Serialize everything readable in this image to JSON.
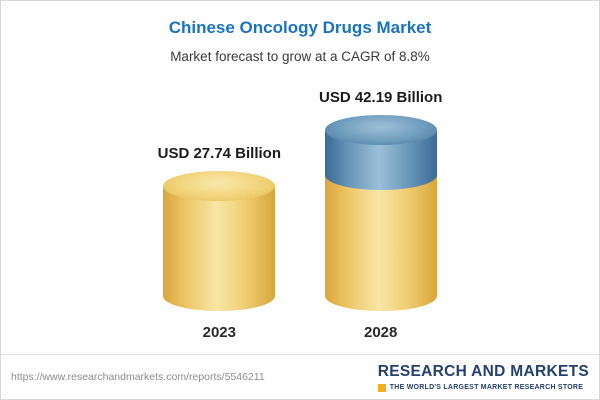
{
  "header": {
    "title": "Chinese Oncology Drugs Market",
    "subtitle": "Market forecast to grow at a CAGR of 8.8%"
  },
  "chart_data": {
    "type": "bar",
    "title": "Chinese Oncology Drugs Market",
    "subtitle": "Market forecast to grow at a CAGR of 8.8%",
    "categories": [
      "2023",
      "2028"
    ],
    "values": [
      27.74,
      42.19
    ],
    "value_labels": [
      "USD 27.74 Billion",
      "USD 42.19 Billion"
    ],
    "unit": "USD Billion",
    "cagr": "8.8%",
    "ylim": [
      0,
      45
    ],
    "grid": false,
    "legend": "none",
    "style": "3d-cylinder",
    "colors": {
      "bar_gold": "#f0c75e",
      "bar_2028_growth_segment_blue": "#4e82ad",
      "title_blue": "#1a73c0"
    }
  },
  "footer": {
    "url": "https://www.researchandmarkets.com/reports/5546211",
    "logo_text": "RESEARCH AND MARKETS",
    "logo_tagline": "THE WORLD'S LARGEST MARKET RESEARCH STORE",
    "logo_navy": "#25406f",
    "logo_yellow": "#f2b01e"
  }
}
